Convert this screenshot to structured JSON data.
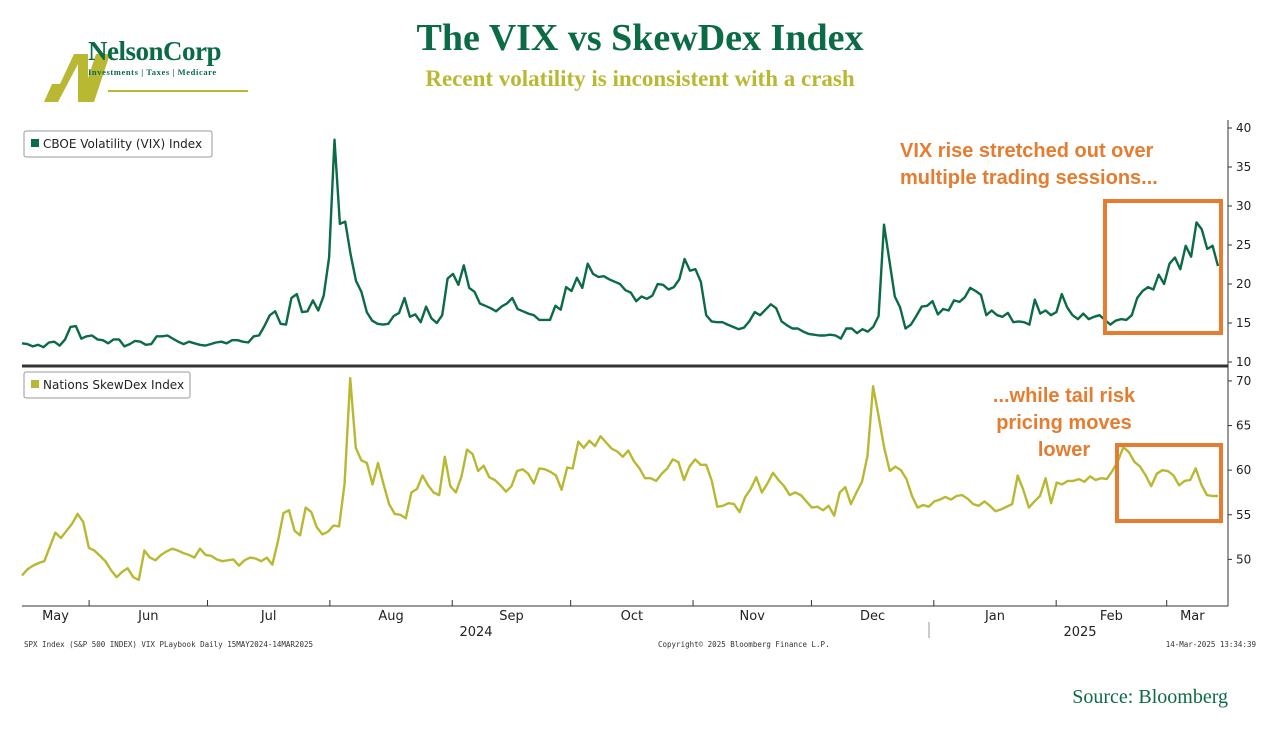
{
  "header": {
    "title": "The VIX vs SkewDex Index",
    "subtitle": "Recent volatility is inconsistent with a crash",
    "logo_name": "NelsonCorp",
    "logo_tagline": "Investments | Taxes | Medicare"
  },
  "annotations": {
    "vix_note_line1": "VIX rise stretched out over",
    "vix_note_line2": "multiple trading sessions...",
    "skew_note_line1": "...while tail risk",
    "skew_note_line2": "pricing moves",
    "skew_note_line3": "lower"
  },
  "footer": {
    "left": "SPX Index (S&P 500 INDEX) VIX PLaybook  Daily 15MAY2024-14MAR2025",
    "center": "Copyright© 2025 Bloomberg Finance L.P.",
    "right": "14-Mar-2025 13:34:39",
    "source": "Source: Bloomberg"
  },
  "colors": {
    "vix": "#0b6b45",
    "skew": "#b8b833",
    "highlight": "#e57c2f",
    "brand": "#0b6b45"
  },
  "chart_data": [
    {
      "type": "line",
      "legend": "CBOE Volatility (VIX) Index",
      "legend_placement": "top-left",
      "ylim": [
        10,
        40
      ],
      "yticks": [
        10,
        15,
        20,
        25,
        30,
        35,
        40
      ],
      "x_start": "2024-05-15",
      "x_end": "2025-03-14",
      "values": [
        12.4,
        12.3,
        12.0,
        12.2,
        11.9,
        12.5,
        12.6,
        12.1,
        12.9,
        14.5,
        14.6,
        13.0,
        13.3,
        13.4,
        12.9,
        12.8,
        12.4,
        12.9,
        12.9,
        12.0,
        12.3,
        12.7,
        12.6,
        12.2,
        12.3,
        13.3,
        13.3,
        13.4,
        13.0,
        12.6,
        12.3,
        12.6,
        12.4,
        12.2,
        12.1,
        12.3,
        12.5,
        12.6,
        12.4,
        12.8,
        12.8,
        12.6,
        12.5,
        13.3,
        13.4,
        14.6,
        16.0,
        16.5,
        14.9,
        14.8,
        18.2,
        18.7,
        16.4,
        16.5,
        17.9,
        16.6,
        18.5,
        23.4,
        38.5,
        27.7,
        28.0,
        23.8,
        20.4,
        19.0,
        16.4,
        15.3,
        14.9,
        14.8,
        14.9,
        15.9,
        16.3,
        18.2,
        15.8,
        16.1,
        15.1,
        17.1,
        15.6,
        15.0,
        16.0,
        20.7,
        21.3,
        19.9,
        22.4,
        19.5,
        19.0,
        17.5,
        17.2,
        16.9,
        16.5,
        17.1,
        17.5,
        18.2,
        16.8,
        16.5,
        16.2,
        16.0,
        15.4,
        15.4,
        15.4,
        17.2,
        16.7,
        19.6,
        19.1,
        20.8,
        19.5,
        22.6,
        21.3,
        20.9,
        21.0,
        20.6,
        20.3,
        20.0,
        19.2,
        18.9,
        17.8,
        18.4,
        18.1,
        18.5,
        20.0,
        19.9,
        19.3,
        19.6,
        20.6,
        23.2,
        21.7,
        21.9,
        20.3,
        16.0,
        15.2,
        15.1,
        15.1,
        14.8,
        14.5,
        14.2,
        14.4,
        15.2,
        16.4,
        16.0,
        16.7,
        17.4,
        16.9,
        15.2,
        14.7,
        14.3,
        14.3,
        13.9,
        13.6,
        13.5,
        13.4,
        13.4,
        13.5,
        13.4,
        13.0,
        14.3,
        14.3,
        13.7,
        14.2,
        13.9,
        14.5,
        15.9,
        27.6,
        23.0,
        18.4,
        17.0,
        14.3,
        14.8,
        15.9,
        17.1,
        17.2,
        17.8,
        16.1,
        16.8,
        16.6,
        17.9,
        17.7,
        18.3,
        19.5,
        19.1,
        18.6,
        16.0,
        16.6,
        16.0,
        15.8,
        16.3,
        15.1,
        15.2,
        15.1,
        14.8,
        18.0,
        16.2,
        16.6,
        16.0,
        16.4,
        18.7,
        17.0,
        16.0,
        15.5,
        16.2,
        15.5,
        15.8,
        16.0,
        15.4,
        14.8,
        15.3,
        15.5,
        15.4,
        16.0,
        18.2,
        19.1,
        19.6,
        19.3,
        21.2,
        20.0,
        22.6,
        23.4,
        21.9,
        24.9,
        23.5,
        27.9,
        27.0,
        24.5,
        24.9,
        22.3
      ]
    },
    {
      "type": "line",
      "legend": "Nations SkewDex Index",
      "legend_placement": "top-left",
      "ylim": [
        45,
        71
      ],
      "yticks": [
        50,
        55,
        60,
        65,
        70
      ],
      "x_start": "2024-05-15",
      "x_end": "2025-03-14",
      "values": [
        48.2,
        48.9,
        49.3,
        49.6,
        49.8,
        51.4,
        53.0,
        52.4,
        53.2,
        54.0,
        55.1,
        54.2,
        51.3,
        51.0,
        50.4,
        49.8,
        48.8,
        48.0,
        48.6,
        49.0,
        48.0,
        47.7,
        51.0,
        50.2,
        49.9,
        50.5,
        50.9,
        51.2,
        51.0,
        50.7,
        50.5,
        50.2,
        51.2,
        50.5,
        50.4,
        50.0,
        49.8,
        49.9,
        50.0,
        49.3,
        49.9,
        50.2,
        50.1,
        49.8,
        50.2,
        49.4,
        52.0,
        55.2,
        55.5,
        53.2,
        52.7,
        55.8,
        55.3,
        53.6,
        52.8,
        53.1,
        53.8,
        53.7,
        58.5,
        70.3,
        62.5,
        61.1,
        60.8,
        58.4,
        60.8,
        58.4,
        56.2,
        55.1,
        55.0,
        54.6,
        57.5,
        57.9,
        59.4,
        58.3,
        57.5,
        57.2,
        61.5,
        58.2,
        57.5,
        59.3,
        62.3,
        61.8,
        59.9,
        60.5,
        59.2,
        58.9,
        58.3,
        57.6,
        58.2,
        59.9,
        60.1,
        59.6,
        58.5,
        60.2,
        60.1,
        59.8,
        59.4,
        57.8,
        60.3,
        60.2,
        63.2,
        62.5,
        63.3,
        62.7,
        63.8,
        63.1,
        62.4,
        62.1,
        61.5,
        62.2,
        61.0,
        60.2,
        59.1,
        59.1,
        58.8,
        59.6,
        60.2,
        61.2,
        60.9,
        58.9,
        60.4,
        61.2,
        60.6,
        60.6,
        58.8,
        55.9,
        56.0,
        56.3,
        56.2,
        55.3,
        57.0,
        57.9,
        59.2,
        57.5,
        58.5,
        59.7,
        58.9,
        58.2,
        57.2,
        57.5,
        57.2,
        56.5,
        55.8,
        55.9,
        55.5,
        56.0,
        54.9,
        57.5,
        58.1,
        56.2,
        57.5,
        58.7,
        61.6,
        69.4,
        66.0,
        62.5,
        59.9,
        60.4,
        60.0,
        59.0,
        57.1,
        55.8,
        56.1,
        55.9,
        56.5,
        56.7,
        57.0,
        56.7,
        57.1,
        57.2,
        56.8,
        56.2,
        56.0,
        56.5,
        56.0,
        55.4,
        55.6,
        55.9,
        56.2,
        59.4,
        57.8,
        55.8,
        56.5,
        57.1,
        59.1,
        56.3,
        58.6,
        58.4,
        58.8,
        58.8,
        59.0,
        58.7,
        59.3,
        58.9,
        59.1,
        59.0,
        59.9,
        61.0,
        62.6,
        62.0,
        60.9,
        60.4,
        59.4,
        58.2,
        59.6,
        60.0,
        59.9,
        59.4,
        58.3,
        58.8,
        58.9,
        60.2,
        58.4,
        57.2,
        57.1,
        57.1
      ]
    }
  ],
  "x_axis": {
    "month_labels": [
      "May",
      "Jun",
      "Jul",
      "Aug",
      "Sep",
      "Oct",
      "Nov",
      "Dec",
      "Jan",
      "Feb",
      "Mar"
    ],
    "year_labels": [
      "2024",
      "2025"
    ]
  }
}
